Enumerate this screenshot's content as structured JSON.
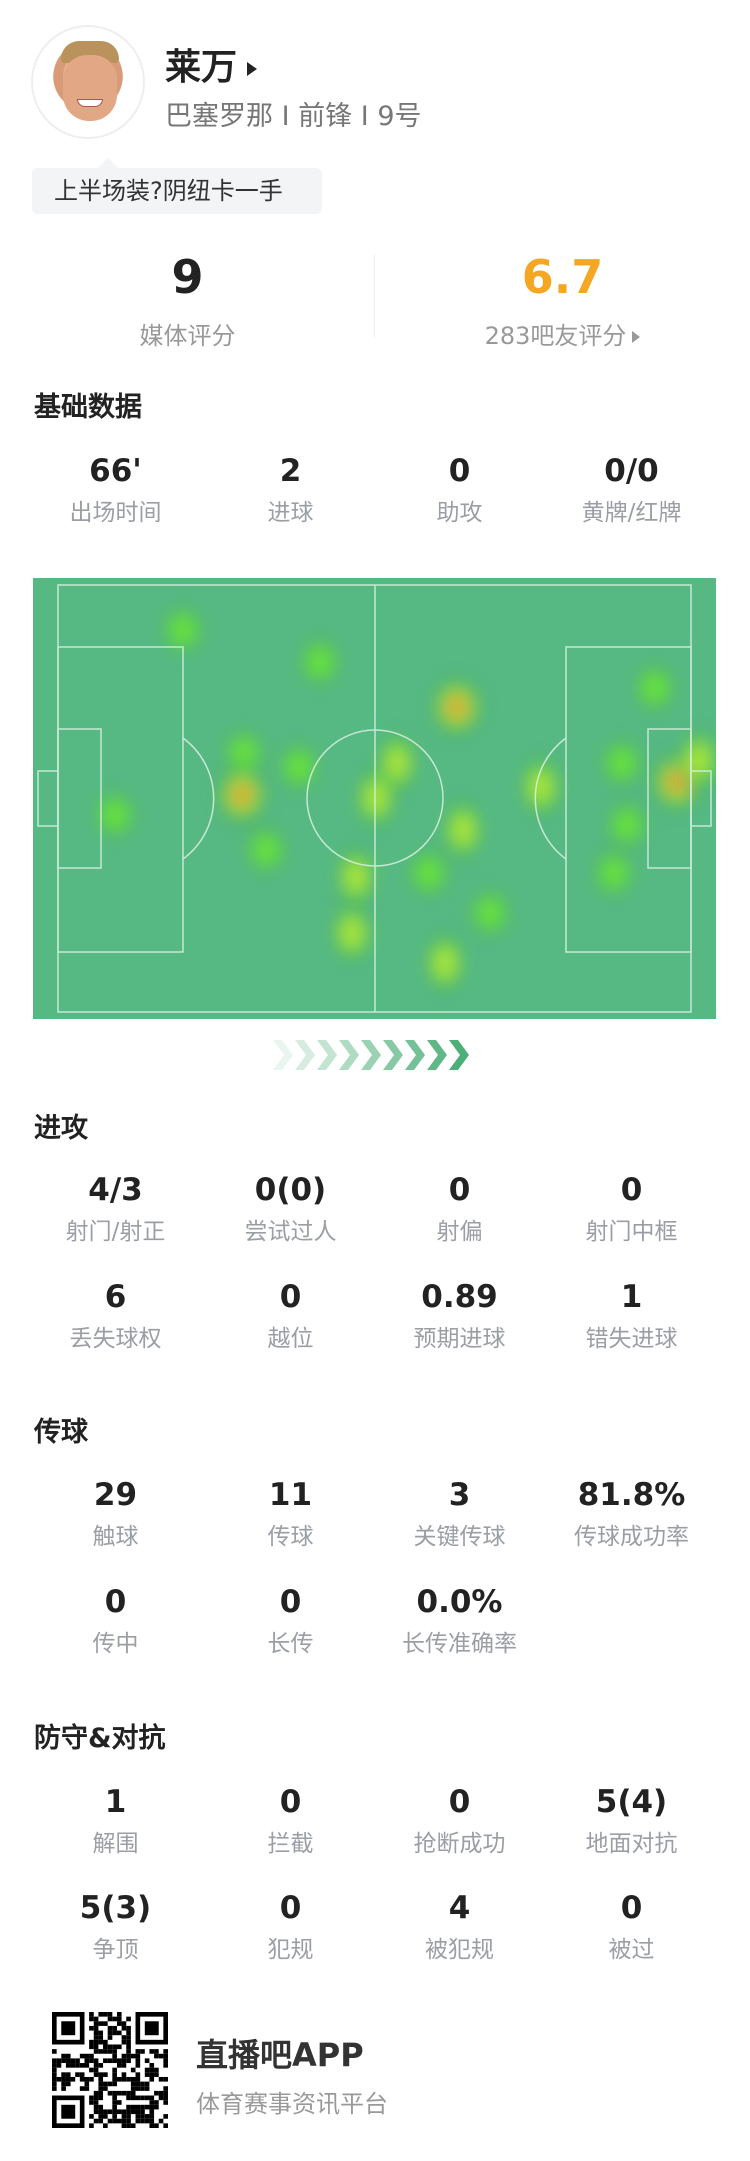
{
  "player": {
    "name": "莱万",
    "team": "巴塞罗那",
    "position": "前锋",
    "number": "9号",
    "separator": "I",
    "comment": "上半场装?阴纽卡一手"
  },
  "ratings": {
    "media_score": "9",
    "media_label": "媒体评分",
    "fan_score": "6.7",
    "fan_label": "283吧友评分",
    "fan_color": "#f5a623"
  },
  "basic": {
    "title": "基础数据",
    "items": [
      {
        "value": "66'",
        "label": "出场时间"
      },
      {
        "value": "2",
        "label": "进球"
      },
      {
        "value": "0",
        "label": "助攻"
      },
      {
        "value": "0/0",
        "label": "黄牌/红牌"
      }
    ]
  },
  "heatmap": {
    "pitch_color": "#56b983",
    "line_color": "#d9f0e2"
  },
  "attack": {
    "title": "进攻",
    "items": [
      {
        "value": "4/3",
        "label": "射门/射正"
      },
      {
        "value": "0(0)",
        "label": "尝试过人"
      },
      {
        "value": "0",
        "label": "射偏"
      },
      {
        "value": "0",
        "label": "射门中框"
      },
      {
        "value": "6",
        "label": "丢失球权"
      },
      {
        "value": "0",
        "label": "越位"
      },
      {
        "value": "0.89",
        "label": "预期进球"
      },
      {
        "value": "1",
        "label": "错失进球"
      }
    ]
  },
  "passing": {
    "title": "传球",
    "items": [
      {
        "value": "29",
        "label": "触球"
      },
      {
        "value": "11",
        "label": "传球"
      },
      {
        "value": "3",
        "label": "关键传球"
      },
      {
        "value": "81.8%",
        "label": "传球成功率"
      },
      {
        "value": "0",
        "label": "传中"
      },
      {
        "value": "0",
        "label": "长传"
      },
      {
        "value": "0.0%",
        "label": "长传准确率"
      }
    ]
  },
  "defense": {
    "title": "防守&对抗",
    "items": [
      {
        "value": "1",
        "label": "解围"
      },
      {
        "value": "0",
        "label": "拦截"
      },
      {
        "value": "0",
        "label": "抢断成功"
      },
      {
        "value": "5(4)",
        "label": "地面对抗"
      },
      {
        "value": "5(3)",
        "label": "争顶"
      },
      {
        "value": "0",
        "label": "犯规"
      },
      {
        "value": "4",
        "label": "被犯规"
      },
      {
        "value": "0",
        "label": "被过"
      }
    ]
  },
  "footer": {
    "app_name": "直播吧APP",
    "slogan": "体育赛事资讯平台"
  }
}
